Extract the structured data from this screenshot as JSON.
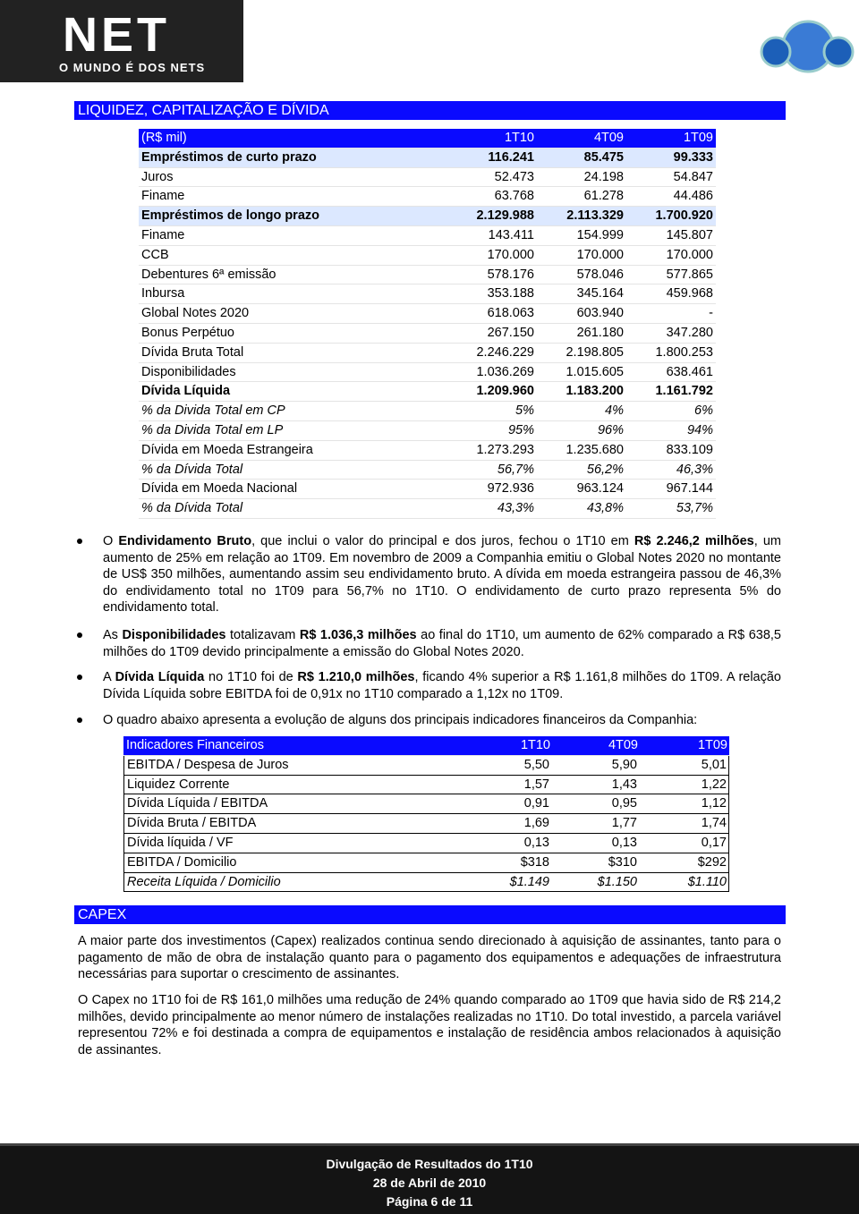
{
  "header": {
    "logo": "NET",
    "tagline": "O MUNDO É DOS NETS"
  },
  "section_title": "LIQUIDEZ, CAPITALIZAÇÃO E DÍVIDA",
  "debt_table": {
    "header": [
      "(R$ mil)",
      "1T10",
      "4T09",
      "1T09"
    ],
    "rows": [
      {
        "style": "highlight",
        "cells": [
          "Empréstimos de curto prazo",
          "116.241",
          "85.475",
          "99.333"
        ]
      },
      {
        "style": "normal",
        "cells": [
          "Juros",
          "52.473",
          "24.198",
          "54.847"
        ]
      },
      {
        "style": "normal",
        "cells": [
          "Finame",
          "63.768",
          "61.278",
          "44.486"
        ]
      },
      {
        "style": "highlight",
        "cells": [
          "Empréstimos de longo prazo",
          "2.129.988",
          "2.113.329",
          "1.700.920"
        ]
      },
      {
        "style": "normal",
        "cells": [
          "Finame",
          "143.411",
          "154.999",
          "145.807"
        ]
      },
      {
        "style": "normal",
        "cells": [
          "CCB",
          "170.000",
          "170.000",
          "170.000"
        ]
      },
      {
        "style": "normal",
        "cells": [
          "Debentures 6ª emissão",
          "578.176",
          "578.046",
          "577.865"
        ]
      },
      {
        "style": "normal",
        "cells": [
          "Inbursa",
          "353.188",
          "345.164",
          "459.968"
        ]
      },
      {
        "style": "normal",
        "cells": [
          "Global Notes 2020",
          "618.063",
          "603.940",
          "-"
        ]
      },
      {
        "style": "normal",
        "cells": [
          "Bonus Perpétuo",
          "267.150",
          "261.180",
          "347.280"
        ]
      },
      {
        "style": "normal",
        "cells": [
          "Dívida Bruta Total",
          "2.246.229",
          "2.198.805",
          "1.800.253"
        ]
      },
      {
        "style": "normal",
        "cells": [
          "Disponibilidades",
          "1.036.269",
          "1.015.605",
          "638.461"
        ]
      },
      {
        "style": "bold",
        "cells": [
          "Dívida Líquida",
          "1.209.960",
          "1.183.200",
          "1.161.792"
        ]
      },
      {
        "style": "italic",
        "cells": [
          "% da Divida Total em CP",
          "5%",
          "4%",
          "6%"
        ]
      },
      {
        "style": "italic",
        "cells": [
          "% da Divida Total em LP",
          "95%",
          "96%",
          "94%"
        ]
      },
      {
        "style": "normal",
        "cells": [
          "Dívida em Moeda Estrangeira",
          "1.273.293",
          "1.235.680",
          "833.109"
        ]
      },
      {
        "style": "italic",
        "cells": [
          "% da Dívida Total",
          "56,7%",
          "56,2%",
          "46,3%"
        ]
      },
      {
        "style": "normal",
        "cells": [
          "Dívida em Moeda Nacional",
          "972.936",
          "963.124",
          "967.144"
        ]
      },
      {
        "style": "italic",
        "cells": [
          "% da Dívida Total",
          "43,3%",
          "43,8%",
          "53,7%"
        ]
      }
    ]
  },
  "bullets": [
    [
      {
        "text": "O "
      },
      {
        "text": "Endividamento Bruto",
        "bold": true
      },
      {
        "text": ", que inclui o valor do principal e dos juros, fechou o 1T10 em "
      },
      {
        "text": "R$ 2.246,2 milhões",
        "bold": true
      },
      {
        "text": ", um aumento de 25% em relação ao 1T09. Em novembro de 2009 a Companhia emitiu o Global Notes 2020 no montante de US$ 350 milhões, aumentando assim seu endividamento bruto. A dívida em moeda estrangeira passou de 46,3% do endividamento total no 1T09 para 56,7% no 1T10. O endividamento de curto prazo representa 5% do endividamento total."
      }
    ],
    [
      {
        "text": "As "
      },
      {
        "text": "Disponibilidades",
        "bold": true
      },
      {
        "text": " totalizavam "
      },
      {
        "text": "R$ 1.036,3 milhões",
        "bold": true
      },
      {
        "text": " ao final do 1T10, um aumento de 62% comparado a R$ 638,5 milhões do 1T09 devido principalmente a emissão do Global Notes 2020."
      }
    ],
    [
      {
        "text": "A "
      },
      {
        "text": "Dívida Líquida",
        "bold": true
      },
      {
        "text": " no 1T10 foi de "
      },
      {
        "text": "R$ 1.210,0 milhões",
        "bold": true
      },
      {
        "text": ", ficando 4% superior a R$ 1.161,8 milhões do 1T09. A relação Dívida Líquida sobre EBITDA foi de 0,91x no 1T10 comparado a 1,12x no 1T09."
      }
    ],
    [
      {
        "text": "O quadro abaixo apresenta a evolução de alguns dos principais indicadores financeiros da Companhia:"
      }
    ]
  ],
  "indicators_table": {
    "header": [
      "Indicadores Financeiros",
      "1T10",
      "4T09",
      "1T09"
    ],
    "rows": [
      {
        "style": "normal",
        "cells": [
          "EBITDA / Despesa de Juros",
          "5,50",
          "5,90",
          "5,01"
        ]
      },
      {
        "style": "normal",
        "cells": [
          "Liquidez Corrente",
          "1,57",
          "1,43",
          "1,22"
        ]
      },
      {
        "style": "normal",
        "cells": [
          "Dívida Líquida / EBITDA",
          "0,91",
          "0,95",
          "1,12"
        ]
      },
      {
        "style": "normal",
        "cells": [
          "Dívida Bruta / EBITDA",
          "1,69",
          "1,77",
          "1,74"
        ]
      },
      {
        "style": "normal",
        "cells": [
          "Dívida líquida / VF",
          "0,13",
          "0,13",
          "0,17"
        ]
      },
      {
        "style": "normal",
        "cells": [
          "EBITDA / Domicilio",
          "$318",
          "$310",
          "$292"
        ]
      },
      {
        "style": "italic",
        "cells": [
          "Receita Líquida / Domicilio",
          "$1.149",
          "$1.150",
          "$1.110"
        ]
      }
    ]
  },
  "capex_title": "CAPEX",
  "capex_paragraphs": [
    "A maior parte dos investimentos (Capex) realizados continua sendo direcionado à aquisição de assinantes, tanto para o pagamento de mão de obra de instalação quanto para o pagamento dos equipamentos e adequações de infraestrutura necessárias para suportar o crescimento de assinantes.",
    "O Capex no 1T10 foi de R$ 161,0 milhões uma redução de 24% quando comparado ao 1T09 que havia sido de R$ 214,2 milhões, devido principalmente ao menor número de instalações realizadas no 1T10. Do total investido, a parcela variável representou 72% e foi destinada a compra de equipamentos e instalação de residência ambos relacionados à aquisição de assinantes."
  ],
  "footer": [
    "Divulgação de Resultados do 1T10",
    "28 de Abril de 2010",
    "Página 6 de 11"
  ]
}
